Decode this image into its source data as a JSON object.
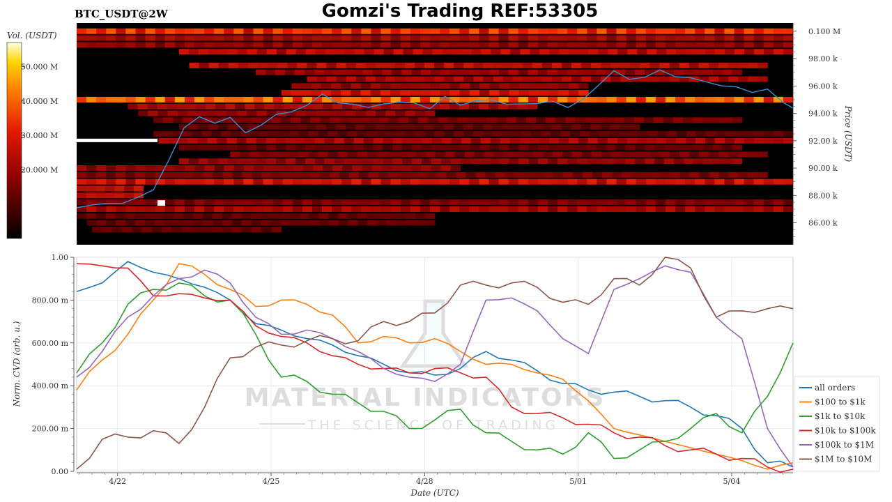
{
  "header": {
    "pair_label": "BTC_USDT@2W",
    "title": "Gomzi's Trading REF:53305"
  },
  "watermark": {
    "line1": "MATERIAL INDICATORS",
    "line2": "THE SCIENCE OF TRADING"
  },
  "colorbar": {
    "label": "Vol. (USDT)",
    "ticks": [
      "50.000 M",
      "40.000 M",
      "30.000 M",
      "20.000 M"
    ],
    "tick_values": [
      50000000,
      40000000,
      30000000,
      20000000
    ],
    "range": [
      0,
      57000000
    ]
  },
  "colors": {
    "all_orders": "#1f77b4",
    "s100_1k": "#ff7f0e",
    "s1k_10k": "#2ca02c",
    "s10k_100k": "#d62728",
    "s100k_1m": "#9467bd",
    "s1m_10m": "#8c564b",
    "price_line": "#3a8fd6"
  },
  "chart_data": [
    {
      "type": "heatmap",
      "ylabel": "Price (USDT)",
      "yticks": [
        "0.100 M",
        "98.00 k",
        "96.00 k",
        "94.00 k",
        "92.00 k",
        "90.00 k",
        "88.00 k",
        "86.00 k"
      ],
      "ytick_values": [
        100000,
        98000,
        96000,
        94000,
        92000,
        90000,
        88000,
        86000
      ],
      "ylim": [
        84400,
        100600
      ],
      "xlim": [
        0,
        14
      ],
      "price_series": {
        "x": [
          0,
          0.3,
          0.6,
          0.9,
          1.2,
          1.5,
          1.8,
          2.1,
          2.4,
          2.7,
          3.0,
          3.3,
          3.6,
          3.9,
          4.2,
          4.5,
          4.8,
          5.1,
          5.4,
          5.7,
          6.0,
          6.3,
          6.6,
          6.9,
          7.2,
          7.5,
          7.8,
          8.1,
          8.4,
          8.7,
          9.0,
          9.3,
          9.6,
          9.9,
          10.2,
          10.5,
          10.8,
          11.1,
          11.4,
          11.7,
          12.0,
          12.3,
          12.6,
          12.9,
          13.2,
          13.5,
          13.8,
          14.0
        ],
        "y": [
          87100,
          87400,
          87300,
          87500,
          87900,
          88300,
          90700,
          92900,
          93700,
          93400,
          93600,
          92600,
          93200,
          93800,
          94200,
          94600,
          95300,
          94900,
          94600,
          94400,
          94800,
          94700,
          94800,
          94400,
          95100,
          94700,
          94900,
          94900,
          94800,
          94600,
          94700,
          95000,
          94300,
          95100,
          96100,
          97000,
          96600,
          96600,
          97100,
          96800,
          96500,
          96300,
          96100,
          95800,
          95600,
          95800,
          94700,
          94500
        ]
      },
      "levels": [
        {
          "price": 100000,
          "from": 0,
          "to": 14,
          "intensity": 0.55
        },
        {
          "price": 99500,
          "from": 0,
          "to": 14,
          "intensity": 0.35
        },
        {
          "price": 99000,
          "from": 0,
          "to": 14,
          "intensity": 0.3
        },
        {
          "price": 98500,
          "from": 2,
          "to": 14,
          "intensity": 0.4
        },
        {
          "price": 97500,
          "from": 2.2,
          "to": 13.5,
          "intensity": 0.4
        },
        {
          "price": 97000,
          "from": 3.5,
          "to": 13,
          "intensity": 0.3
        },
        {
          "price": 96500,
          "from": 4.5,
          "to": 13.5,
          "intensity": 0.35
        },
        {
          "price": 96000,
          "from": 4.2,
          "to": 10,
          "intensity": 0.3
        },
        {
          "price": 95500,
          "from": 4,
          "to": 10,
          "intensity": 0.45
        },
        {
          "price": 95000,
          "from": 0,
          "to": 14,
          "intensity": 0.65
        },
        {
          "price": 94500,
          "from": 1,
          "to": 9,
          "intensity": 0.35
        },
        {
          "price": 94000,
          "from": 1.2,
          "to": 7,
          "intensity": 0.3
        },
        {
          "price": 93500,
          "from": 1.5,
          "to": 13,
          "intensity": 0.25
        },
        {
          "price": 93000,
          "from": 2,
          "to": 11,
          "intensity": 0.2
        },
        {
          "price": 92500,
          "from": 1.5,
          "to": 14,
          "intensity": 0.2
        },
        {
          "price": 92000,
          "from": 1.6,
          "to": 14,
          "intensity": 0.35
        },
        {
          "price": 91500,
          "from": 2,
          "to": 13,
          "intensity": 0.2
        },
        {
          "price": 91000,
          "from": 3,
          "to": 13.5,
          "intensity": 0.25
        },
        {
          "price": 90500,
          "from": 2,
          "to": 13,
          "intensity": 0.3
        },
        {
          "price": 90000,
          "from": 0,
          "to": 7.5,
          "intensity": 0.3
        },
        {
          "price": 89500,
          "from": 0,
          "to": 13.5,
          "intensity": 0.25
        },
        {
          "price": 89000,
          "from": 0,
          "to": 14,
          "intensity": 0.45
        },
        {
          "price": 88500,
          "from": 0,
          "to": 1.3,
          "intensity": 0.4
        },
        {
          "price": 88000,
          "from": 0,
          "to": 1.3,
          "intensity": 0.4
        },
        {
          "price": 87500,
          "from": 0,
          "to": 14,
          "intensity": 0.25
        },
        {
          "price": 87000,
          "from": 0,
          "to": 14,
          "intensity": 0.35
        },
        {
          "price": 86500,
          "from": 0,
          "to": 7,
          "intensity": 0.2
        },
        {
          "price": 86000,
          "from": 0.2,
          "to": 7,
          "intensity": 0.2
        },
        {
          "price": 85500,
          "from": 0.3,
          "to": 4,
          "intensity": 0.2
        }
      ]
    },
    {
      "type": "line",
      "xlabel": "Date (UTC)",
      "ylabel": "Norm. CVD (arb. u.)",
      "xticks": [
        "4/22",
        "4/25",
        "4/28",
        "5/01",
        "5/04"
      ],
      "xtick_values": [
        0.8,
        3.8,
        6.8,
        9.8,
        12.8
      ],
      "xlim": [
        0,
        14
      ],
      "yticks": [
        "0.00",
        "200.00 m",
        "400.00 m",
        "600.00 m",
        "800.00 m",
        "1.00"
      ],
      "ytick_values": [
        0,
        0.2,
        0.4,
        0.6,
        0.8,
        1.0
      ],
      "ylim": [
        0,
        1.0
      ],
      "grid": true,
      "legend": "bottom-right",
      "x": [
        0,
        0.5,
        1.0,
        1.5,
        2.0,
        2.5,
        3.0,
        3.5,
        4.0,
        4.5,
        5.0,
        5.5,
        6.0,
        6.5,
        7.0,
        7.5,
        8.0,
        8.5,
        9.0,
        9.5,
        10.0,
        10.5,
        11.0,
        11.5,
        12.0,
        12.5,
        13.0,
        13.5,
        14.0
      ],
      "series": [
        {
          "name": "all orders",
          "values": [
            0.84,
            0.88,
            0.98,
            0.93,
            0.9,
            0.86,
            0.8,
            0.69,
            0.66,
            0.62,
            0.59,
            0.54,
            0.5,
            0.46,
            0.45,
            0.48,
            0.56,
            0.52,
            0.47,
            0.41,
            0.38,
            0.37,
            0.35,
            0.33,
            0.3,
            0.26,
            0.2,
            0.04,
            0.02
          ]
        },
        {
          "name": "$100 to $1k",
          "values": [
            0.38,
            0.52,
            0.64,
            0.8,
            0.97,
            0.92,
            0.85,
            0.77,
            0.8,
            0.78,
            0.73,
            0.6,
            0.63,
            0.6,
            0.62,
            0.56,
            0.5,
            0.5,
            0.46,
            0.43,
            0.33,
            0.2,
            0.17,
            0.14,
            0.11,
            0.08,
            0.05,
            0.01,
            0.04
          ]
        },
        {
          "name": "$1k to $10k",
          "values": [
            0.46,
            0.6,
            0.78,
            0.85,
            0.88,
            0.82,
            0.8,
            0.64,
            0.44,
            0.42,
            0.36,
            0.32,
            0.28,
            0.2,
            0.24,
            0.29,
            0.18,
            0.14,
            0.1,
            0.08,
            0.18,
            0.06,
            0.1,
            0.14,
            0.2,
            0.27,
            0.18,
            0.35,
            0.6
          ]
        },
        {
          "name": "$10k to $100k",
          "values": [
            0.97,
            0.96,
            0.95,
            0.82,
            0.83,
            0.81,
            0.8,
            0.68,
            0.63,
            0.6,
            0.54,
            0.5,
            0.48,
            0.46,
            0.48,
            0.46,
            0.44,
            0.3,
            0.27,
            0.25,
            0.22,
            0.18,
            0.16,
            0.12,
            0.1,
            0.08,
            0.06,
            0.02,
            0.01
          ]
        },
        {
          "name": "$100k to $1M",
          "values": [
            0.44,
            0.56,
            0.72,
            0.82,
            0.9,
            0.94,
            0.88,
            0.72,
            0.64,
            0.66,
            0.62,
            0.56,
            0.48,
            0.44,
            0.42,
            0.5,
            0.8,
            0.81,
            0.75,
            0.62,
            0.55,
            0.85,
            0.9,
            0.96,
            0.93,
            0.72,
            0.62,
            0.2,
            0.02
          ]
        },
        {
          "name": "$1M to $10M",
          "values": [
            0.01,
            0.15,
            0.16,
            0.19,
            0.13,
            0.3,
            0.53,
            0.58,
            0.59,
            0.61,
            0.62,
            0.61,
            0.7,
            0.7,
            0.74,
            0.87,
            0.87,
            0.88,
            0.86,
            0.79,
            0.78,
            0.9,
            0.87,
            1.0,
            0.95,
            0.72,
            0.75,
            0.76,
            0.76
          ]
        }
      ]
    }
  ]
}
